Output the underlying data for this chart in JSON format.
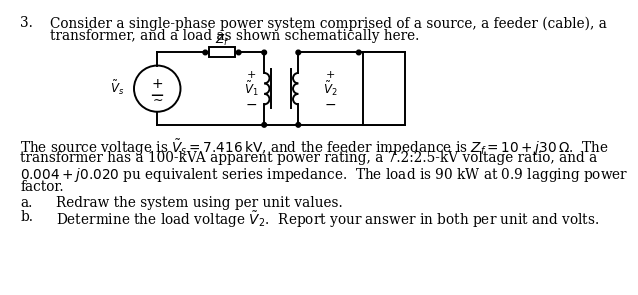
{
  "background_color": "#ffffff",
  "text_color": "#000000",
  "problem_number": "3.",
  "intro_line1": "Consider a single-phase power system comprised of a source, a feeder (cable), a",
  "intro_line2": "transformer, and a load as shown schematically here.",
  "desc_line1": "The source voltage is $\\tilde{V}_s = 7.416\\,\\mathrm{kV}$, and the feeder impedance is $Z_f =10+j30\\,\\Omega$.  The",
  "desc_line2": "transformer has a 100-kVA apparent power rating, a 7.2:2.5-kV voltage ratio, and a",
  "desc_line3": "$0.004+j0.020$ pu equivalent series impedance.  The load is 90 kW at 0.9 lagging power",
  "desc_line4": "factor.",
  "part_a_label": "a.",
  "part_a_text": "Redraw the system using per unit values.",
  "part_b_label": "b.",
  "part_b_text": "Determine the load voltage $\\tilde{V}_2$.  Report your answer in both per unit and volts.",
  "font_size": 9.8,
  "font_size_circ": 8.5
}
